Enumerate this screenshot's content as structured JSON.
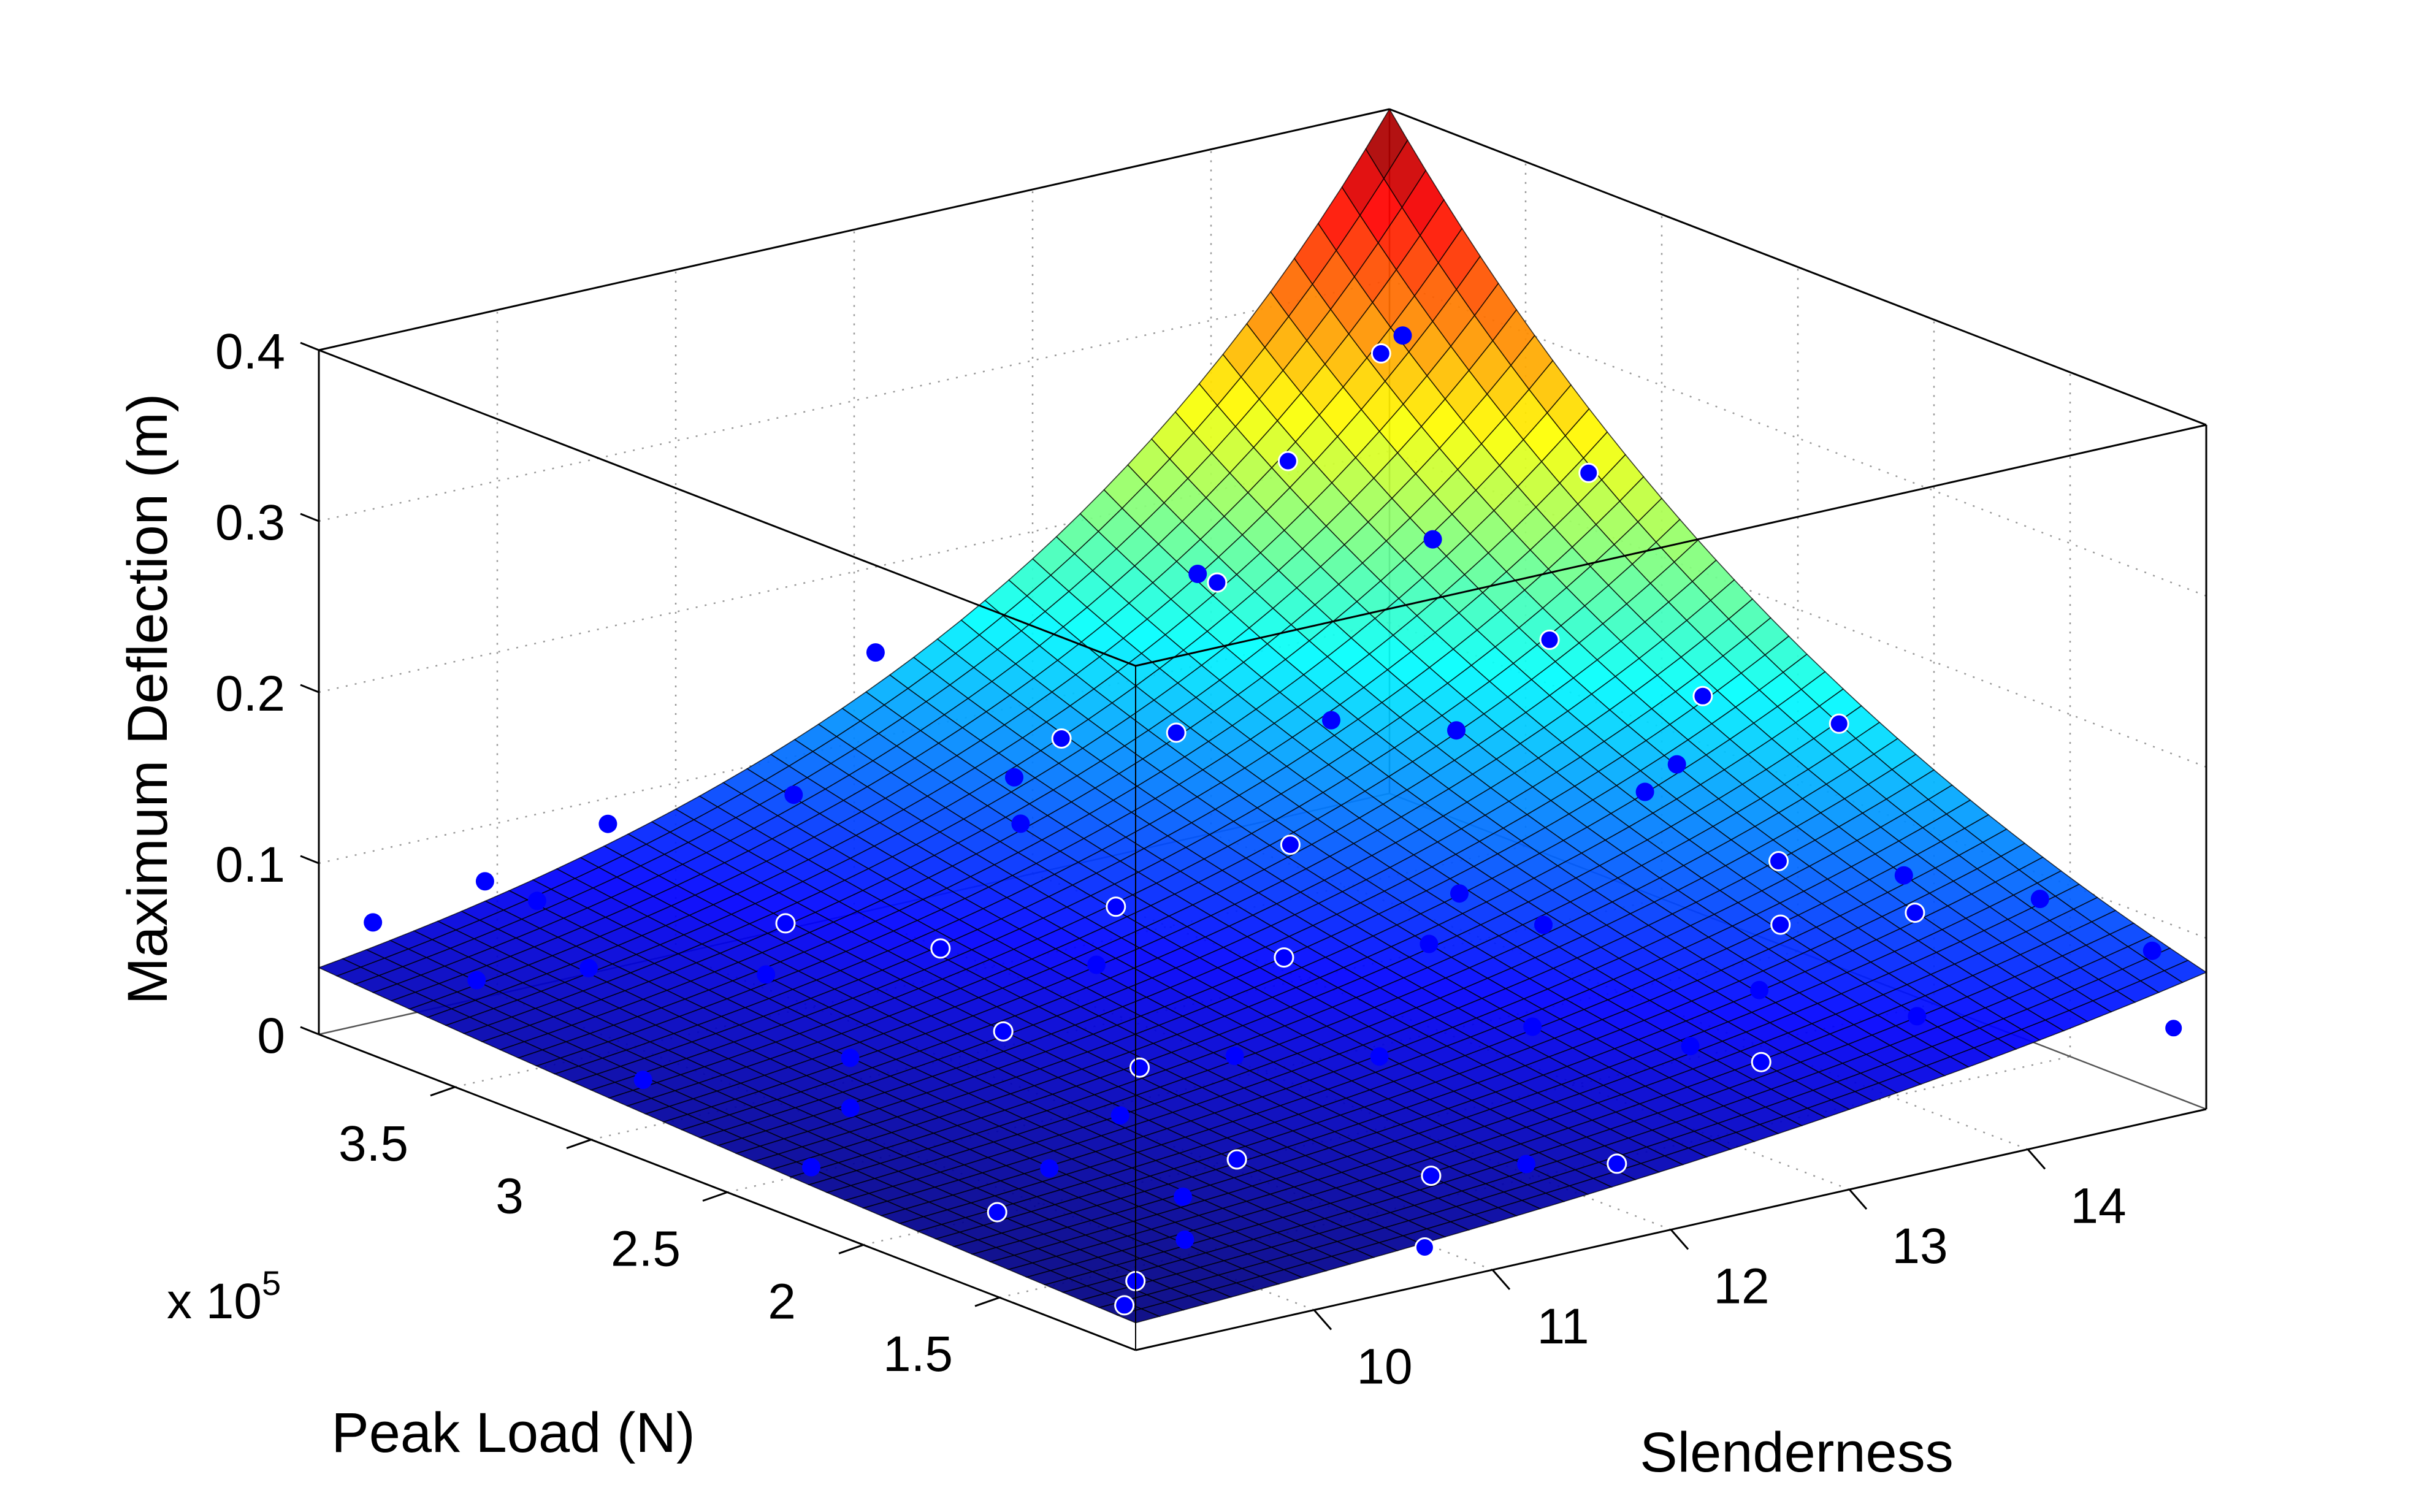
{
  "chart_data": {
    "type": "surface+scatter",
    "xlabel": "Peak Load (N)",
    "ylabel": "Slenderness",
    "zlabel": "Maximum Deflection (m)",
    "x_exponent_label": "x 10",
    "x_exponent_power": "5",
    "xlim": [
      1.0,
      4.0
    ],
    "ylim": [
      9,
      15
    ],
    "zlim": [
      0,
      0.4
    ],
    "x_ticks": [
      "1.5",
      "2",
      "2.5",
      "3",
      "3.5"
    ],
    "x_tick_values": [
      1.5,
      2.0,
      2.5,
      3.0,
      3.5
    ],
    "y_ticks": [
      "10",
      "11",
      "12",
      "13",
      "14"
    ],
    "y_tick_values": [
      10,
      11,
      12,
      13,
      14
    ],
    "z_ticks": [
      "0",
      "0.1",
      "0.2",
      "0.3",
      "0.4"
    ],
    "z_tick_values": [
      0,
      0.1,
      0.2,
      0.3,
      0.4
    ],
    "grid": true,
    "colormap": "jet",
    "surface": {
      "x": [
        1.0,
        1.5,
        2.0,
        2.5,
        3.0,
        3.5,
        4.0
      ],
      "y": [
        9,
        10,
        11,
        12,
        13,
        14,
        15
      ],
      "z": [
        [
          0.016,
          0.0209,
          0.0274,
          0.0358,
          0.0468,
          0.0612,
          0.08
        ],
        [
          0.0186,
          0.0248,
          0.033,
          0.0441,
          0.0588,
          0.0784,
          0.1046
        ],
        [
          0.0215,
          0.0293,
          0.0399,
          0.0543,
          0.0738,
          0.1005,
          0.1368
        ],
        [
          0.025,
          0.0347,
          0.0481,
          0.0668,
          0.0928,
          0.1288,
          0.1789
        ],
        [
          0.029,
          0.041,
          0.0581,
          0.0824,
          0.1166,
          0.1652,
          0.234
        ],
        [
          0.0336,
          0.0486,
          0.0702,
          0.1014,
          0.1465,
          0.2117,
          0.3059
        ],
        [
          0.039,
          0.0575,
          0.0847,
          0.1249,
          0.1841,
          0.2714,
          0.4
        ]
      ]
    },
    "points_color": "#0000ff",
    "points": [
      [
        1.23,
        9.35,
        0.018
      ],
      [
        1.35,
        9.81,
        0.024
      ],
      [
        1.58,
        10.15,
        0.027
      ],
      [
        1.81,
        9.46,
        0.02
      ],
      [
        2.04,
        10.5,
        0.038
      ],
      [
        2.27,
        10.96,
        0.041
      ],
      [
        2.5,
        9.69,
        0.033
      ],
      [
        2.73,
        11.42,
        0.062
      ],
      [
        2.96,
        11.88,
        0.071
      ],
      [
        3.19,
        10.27,
        0.055
      ],
      [
        3.42,
        10.73,
        0.06
      ],
      [
        3.65,
        9.35,
        0.045
      ],
      [
        3.88,
        10.04,
        0.061
      ],
      [
        1.12,
        11.88,
        0.034
      ],
      [
        1.46,
        12.81,
        0.06
      ],
      [
        1.23,
        13.73,
        0.07
      ],
      [
        1.69,
        14.42,
        0.086
      ],
      [
        1.12,
        14.88,
        0.088
      ],
      [
        2.15,
        13.04,
        0.083
      ],
      [
        2.38,
        13.96,
        0.125
      ],
      [
        2.62,
        14.65,
        0.15
      ],
      [
        3.08,
        13.27,
        0.14
      ],
      [
        3.31,
        14.19,
        0.21
      ],
      [
        3.65,
        13.5,
        0.18
      ],
      [
        3.88,
        14.77,
        0.27
      ],
      [
        3.54,
        12.46,
        0.12
      ],
      [
        2.85,
        12.69,
        0.095
      ],
      [
        1.92,
        11.77,
        0.05
      ],
      [
        1.35,
        11.19,
        0.029
      ],
      [
        1.81,
        12.46,
        0.058
      ],
      [
        3.77,
        11.31,
        0.1
      ],
      [
        4.0,
        12.12,
        0.15
      ],
      [
        2.27,
        9.12,
        0.026
      ],
      [
        1.0,
        10.62,
        0.022
      ],
      [
        2.96,
        9.23,
        0.032
      ],
      [
        2.5,
        12.12,
        0.064
      ],
      [
        1.58,
        13.38,
        0.072
      ],
      [
        2.04,
        14.19,
        0.1
      ],
      [
        3.19,
        14.88,
        0.24
      ],
      [
        3.42,
        12.92,
        0.12
      ],
      [
        1.23,
        11.54,
        0.035
      ],
      [
        2.73,
        10.04,
        0.04
      ],
      [
        3.54,
        9.81,
        0.048
      ],
      [
        2.15,
        11.31,
        0.047
      ],
      [
        1.69,
        10.62,
        0.031
      ],
      [
        3.08,
        11.08,
        0.058
      ],
      [
        2.38,
        12.92,
        0.09
      ],
      [
        1.46,
        14.77,
        0.1
      ],
      [
        2.96,
        14.31,
        0.17
      ],
      [
        3.77,
        14.08,
        0.23
      ],
      [
        4.0,
        10.62,
        0.085
      ],
      [
        1.81,
        13.85,
        0.085
      ],
      [
        1.12,
        9.12,
        0.016
      ],
      [
        2.62,
        10.73,
        0.046
      ],
      [
        3.31,
        11.88,
        0.098
      ],
      [
        1.92,
        9.92,
        0.028
      ],
      [
        1.35,
        13.04,
        0.052
      ],
      [
        3.65,
        14.54,
        0.3
      ],
      [
        2.85,
        13.62,
        0.14
      ],
      [
        2.27,
        14.88,
        0.15
      ],
      [
        3.88,
        9.12,
        0.07
      ],
      [
        3.77,
        9.58,
        0.09
      ],
      [
        1.12,
        15.0,
        0.04
      ],
      [
        1.81,
        11.88,
        0.12
      ],
      [
        2.96,
        11.31,
        0.16
      ],
      [
        2.04,
        13.62,
        0.17
      ],
      [
        3.42,
        13.04,
        0.21
      ],
      [
        1.58,
        14.19,
        0.12
      ]
    ]
  }
}
